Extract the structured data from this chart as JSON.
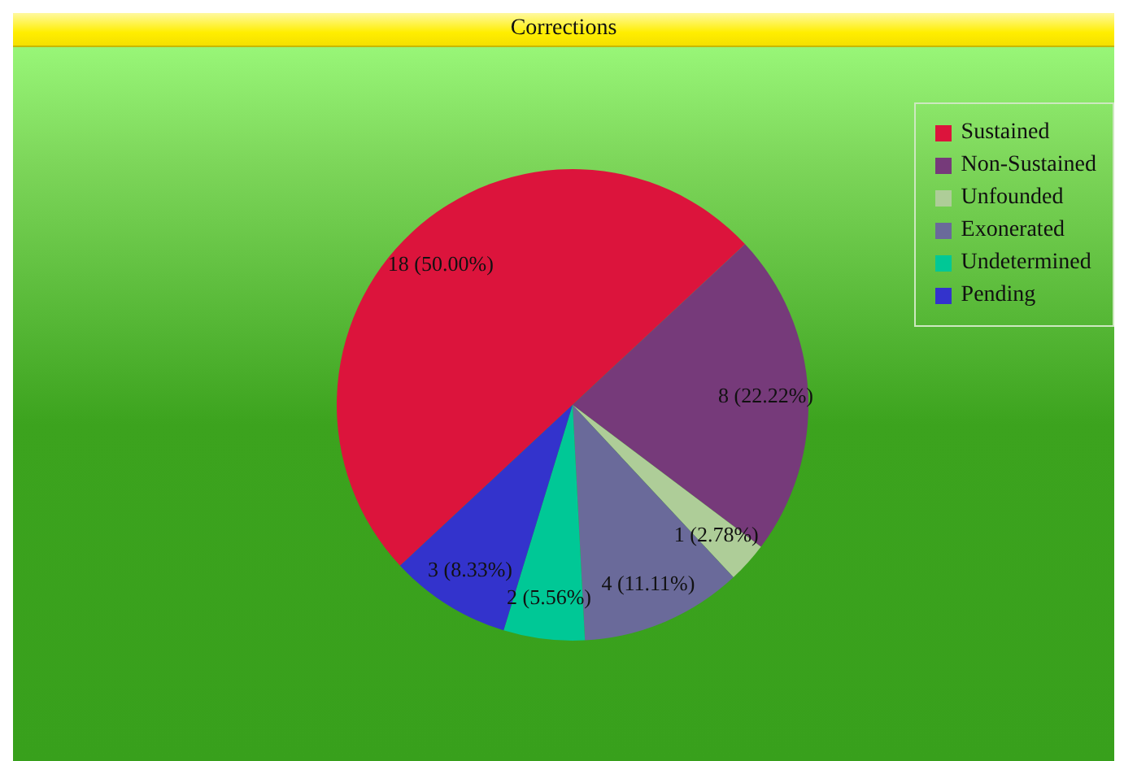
{
  "chart_data": {
    "type": "pie",
    "title": "Corrections",
    "categories": [
      "Sustained",
      "Non-Sustained",
      "Unfounded",
      "Exonerated",
      "Undetermined",
      "Pending"
    ],
    "values": [
      18,
      8,
      1,
      4,
      2,
      3
    ],
    "colors": [
      "#dc143c",
      "#763a7a",
      "#aecd98",
      "#6a6a9a",
      "#00c896",
      "#3333cc"
    ],
    "value_labels": [
      "18 (50.00%)",
      "8 (22.22%)",
      "1 (2.78%)",
      "4 (11.11%)",
      "2 (5.56%)",
      "3 (8.33%)"
    ],
    "legend": "top right"
  }
}
